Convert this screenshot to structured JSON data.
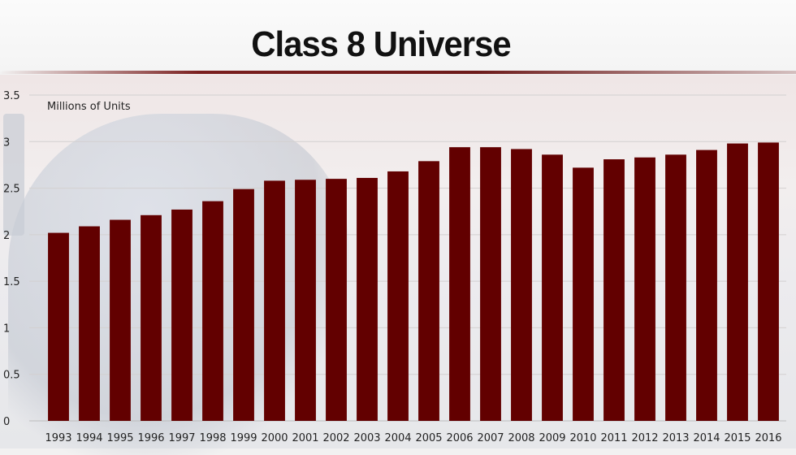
{
  "chart_data": {
    "type": "bar",
    "title": "Class 8 Universe",
    "ylabel": "Millions of Units",
    "xlabel": "",
    "categories": [
      "1993",
      "1994",
      "1995",
      "1996",
      "1997",
      "1998",
      "1999",
      "2000",
      "2001",
      "2002",
      "2003",
      "2004",
      "2005",
      "2006",
      "2007",
      "2008",
      "2009",
      "2010",
      "2011",
      "2012",
      "2013",
      "2014",
      "2015",
      "2016"
    ],
    "values": [
      2.02,
      2.09,
      2.16,
      2.21,
      2.27,
      2.36,
      2.49,
      2.58,
      2.59,
      2.6,
      2.61,
      2.68,
      2.79,
      2.94,
      2.94,
      2.92,
      2.86,
      2.72,
      2.81,
      2.83,
      2.86,
      2.91,
      2.98,
      2.99
    ],
    "yticks": [
      "0",
      "0.5",
      "1",
      "1.5",
      "2",
      "2.5",
      "3",
      "3.5"
    ],
    "ylim": [
      0,
      3.5
    ],
    "grid": true,
    "bar_color": "#620000"
  }
}
